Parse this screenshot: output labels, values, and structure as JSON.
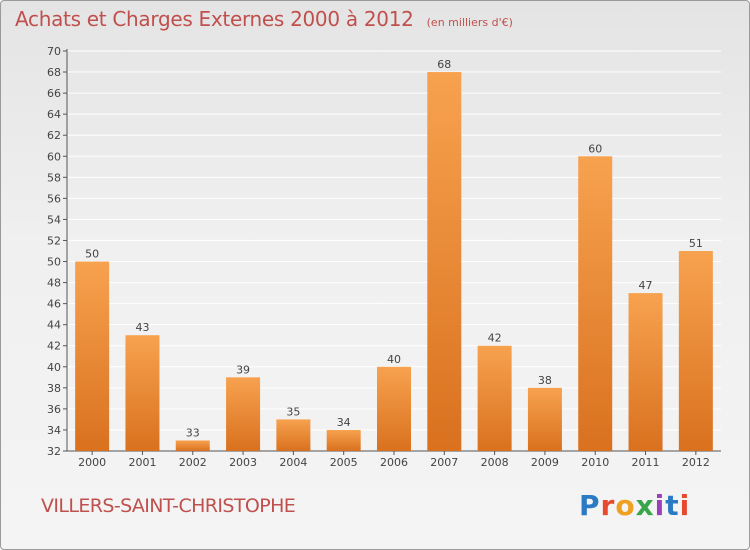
{
  "page": {
    "title": "Achats et Charges Externes 2000 à 2012",
    "unit": "(en milliers d'€)",
    "place": "VILLERS-SAINT-CHRISTOPHE",
    "logo": "Proxiti",
    "logo_colors": [
      "#2b7bc4",
      "#e8492e",
      "#f0a020",
      "#3aa64a",
      "#9b3fb8",
      "#2b7bc4",
      "#e8492e"
    ]
  },
  "colors": {
    "title": "#c0504d",
    "bar_light": "#f7a24f",
    "bar_dark": "#d9711f",
    "axis": "#555555",
    "grid": "#ffffff"
  },
  "chart_data": {
    "type": "bar",
    "title": "Achats et Charges Externes 2000 à 2012",
    "subtitle": "(en milliers d'€)",
    "xlabel": "",
    "ylabel": "",
    "categories": [
      "2000",
      "2001",
      "2002",
      "2003",
      "2004",
      "2005",
      "2006",
      "2007",
      "2008",
      "2009",
      "2010",
      "2011",
      "2012"
    ],
    "values": [
      50,
      43,
      33,
      39,
      35,
      34,
      40,
      68,
      42,
      38,
      60,
      47,
      51
    ],
    "ylim": [
      32,
      70
    ],
    "yticks": [
      32,
      34,
      36,
      38,
      40,
      42,
      44,
      46,
      48,
      50,
      52,
      54,
      56,
      58,
      60,
      62,
      64,
      66,
      68,
      70
    ],
    "grid": true,
    "data_labels": true
  }
}
